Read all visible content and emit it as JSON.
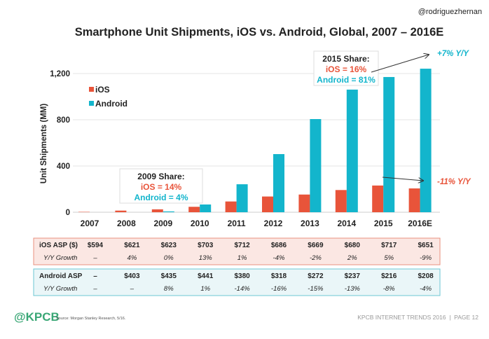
{
  "watermark": "@rodriguezhernan",
  "colors": {
    "ios": "#e8543a",
    "android": "#13b5cc",
    "brand": "#3aa776"
  },
  "chart_data": {
    "type": "bar",
    "title": "Smartphone Unit Shipments, iOS vs. Android, Global, 2007 – 2016E",
    "ylabel": "Unit Shipments (MM)",
    "xlabel": "",
    "ylim": [
      0,
      1300
    ],
    "yticks": [
      0,
      400,
      800,
      1200
    ],
    "ytick_labels": [
      "0",
      "400",
      "800",
      "1,200"
    ],
    "grid": true,
    "legend_placement": "top-left",
    "categories": [
      "2007",
      "2008",
      "2009",
      "2010",
      "2011",
      "2012",
      "2013",
      "2014",
      "2015",
      "2016E"
    ],
    "series": [
      {
        "name": "iOS",
        "values": [
          3,
          14,
          25,
          47,
          93,
          136,
          153,
          192,
          231,
          206
        ]
      },
      {
        "name": "Android",
        "values": [
          0,
          0,
          7,
          67,
          242,
          503,
          806,
          1061,
          1170,
          1242
        ]
      }
    ],
    "annotations": {
      "share2009": {
        "title": "2009 Share:",
        "ios": "iOS = 14%",
        "android": "Android = 4%"
      },
      "share2015": {
        "title": "2015 Share:",
        "ios": "iOS = 16%",
        "android": "Android = 81%"
      },
      "android_growth": "+7% Y/Y",
      "ios_growth": "-11% Y/Y"
    }
  },
  "tables": {
    "ios": {
      "rows": [
        {
          "label": "iOS ASP ($)",
          "values": [
            "$594",
            "$621",
            "$623",
            "$703",
            "$712",
            "$686",
            "$669",
            "$680",
            "$717",
            "$651"
          ]
        },
        {
          "label": "Y/Y Growth",
          "values": [
            "–",
            "4%",
            "0%",
            "13%",
            "1%",
            "-4%",
            "-2%",
            "2%",
            "5%",
            "-9%"
          ]
        }
      ]
    },
    "android": {
      "rows": [
        {
          "label": "Android ASP",
          "values": [
            "–",
            "$403",
            "$435",
            "$441",
            "$380",
            "$318",
            "$272",
            "$237",
            "$216",
            "$208"
          ]
        },
        {
          "label": "Y/Y Growth",
          "values": [
            "–",
            "–",
            "8%",
            "1%",
            "-14%",
            "-16%",
            "-15%",
            "-13%",
            "-8%",
            "-4%"
          ]
        }
      ]
    }
  },
  "footer": {
    "logo": "@KPCB",
    "source": "Source: Morgan Stanley Research, 5/16.",
    "right": "KPCB INTERNET TRENDS 2016  |  PAGE 12"
  }
}
